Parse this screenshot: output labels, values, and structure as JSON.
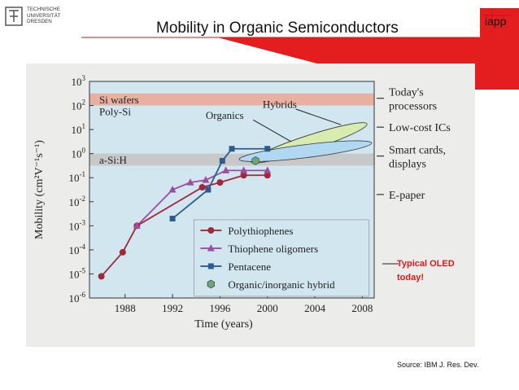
{
  "slide": {
    "title": "Mobility in Organic Semiconductors",
    "logo_text": [
      "TECHNISCHE",
      "UNIVERSITÄT",
      "DRESDEN"
    ],
    "iapp_text": "iapp",
    "source": "Source: IBM J. Res. Dev.",
    "colors": {
      "accent_red": "#e01818"
    }
  },
  "chart_data": {
    "type": "line",
    "xlabel": "Time (years)",
    "ylabel": "Mobility (cm²V⁻¹s⁻¹)",
    "xlim": [
      1985,
      2009
    ],
    "ylim": [
      -6,
      3
    ],
    "y_scale": "log",
    "x_ticks": [
      "1988",
      "1992",
      "1996",
      "2000",
      "2004",
      "2008"
    ],
    "y_tick_exponents": [
      "3",
      "2",
      "1",
      "0",
      "-1",
      "-2",
      "-3",
      "-4",
      "-5",
      "-6"
    ],
    "y_tick_base": "10",
    "grid": false,
    "legend_position": "bottom-right",
    "series": [
      {
        "name": "Polythiophenes",
        "marker": "circle",
        "color": "#a02838",
        "points": [
          [
            1986,
            -5.1
          ],
          [
            1987.8,
            -4.1
          ],
          [
            1989,
            -3.0
          ],
          [
            1994.5,
            -1.4
          ],
          [
            1996,
            -1.2
          ],
          [
            1998,
            -0.9
          ],
          [
            2000,
            -0.9
          ]
        ]
      },
      {
        "name": "Thiophene oligomers",
        "marker": "triangle",
        "color": "#9a4ea0",
        "points": [
          [
            1989,
            -3.0
          ],
          [
            1992,
            -1.5
          ],
          [
            1993.5,
            -1.2
          ],
          [
            1994.8,
            -1.1
          ],
          [
            1996.5,
            -0.7
          ],
          [
            1998,
            -0.7
          ],
          [
            2000,
            -0.7
          ]
        ]
      },
      {
        "name": "Pentacene",
        "marker": "square",
        "color": "#2e5c8a",
        "points": [
          [
            1992,
            -2.7
          ],
          [
            1995,
            -1.5
          ],
          [
            1996.2,
            -0.3
          ],
          [
            1997,
            0.2
          ],
          [
            2000,
            0.2
          ]
        ]
      },
      {
        "name": "Organic/inorganic hybrid",
        "marker": "hexagon",
        "color": "#6aa878",
        "points": [
          [
            1999,
            -0.3
          ]
        ]
      }
    ],
    "bands": [
      {
        "label": "Si wafers",
        "range": [
          2,
          2.5
        ],
        "color": "#e8b0a0"
      },
      {
        "label": "Poly-Si",
        "range": [
          0,
          2
        ],
        "color": "#d2e6f0"
      },
      {
        "label": "a-Si:H",
        "range": [
          -0.5,
          0
        ],
        "color": "#c8c8c8"
      }
    ],
    "annotations": [
      {
        "text": "Hybrids",
        "fill": "#d8ecb0"
      },
      {
        "text": "Organics",
        "fill": "#b0d8f0"
      }
    ],
    "right_labels": [
      {
        "text": [
          "Today's",
          "processors"
        ],
        "exp": 2.3
      },
      {
        "text": [
          "Low-cost ICs"
        ],
        "exp": 1.1
      },
      {
        "text": [
          "Smart cards,",
          "displays"
        ],
        "exp": -0.1
      },
      {
        "text": [
          "E-paper"
        ],
        "exp": -1.7
      }
    ],
    "callout": {
      "text": [
        "Typical OLED",
        "today!"
      ],
      "color": "#e01818"
    }
  }
}
